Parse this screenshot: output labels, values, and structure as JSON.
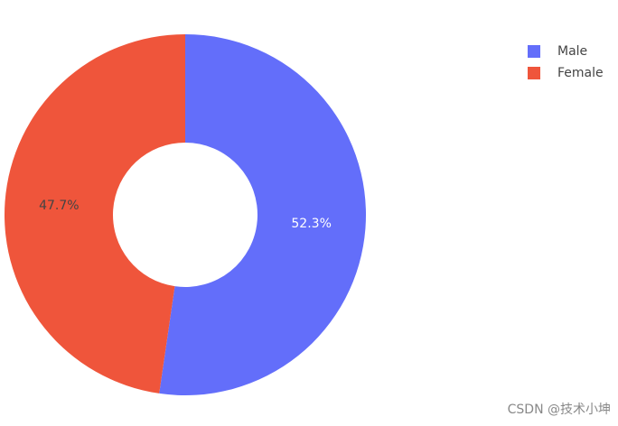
{
  "chart_data": {
    "type": "pie",
    "categories": [
      "Male",
      "Female"
    ],
    "values": [
      52.3,
      47.7
    ],
    "value_labels": [
      "52.3%",
      "47.7%"
    ],
    "colors": [
      "#636efa",
      "#ef553b"
    ],
    "legend": "top-right"
  },
  "watermark": "CSDN @技术小坤"
}
